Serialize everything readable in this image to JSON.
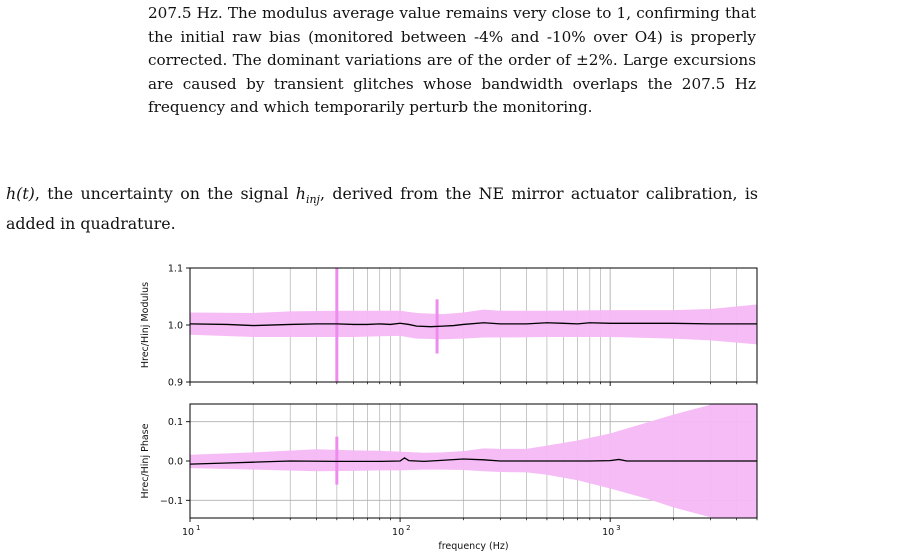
{
  "paragraph1": {
    "text": "207.5 Hz. The modulus average value remains very close to 1, confirming that the initial raw bias (monitored between -4% and -10% over O4) is properly corrected. The dominant variations are of the order of ±2%. Large excursions are caused by transient glitches whose bandwidth overlaps the 207.5 Hz frequency and which temporarily perturb the monitoring."
  },
  "paragraph2": {
    "math_ht": "h(t)",
    "text_a": ", the uncertainty on the signal ",
    "math_h": "h",
    "math_sub": "inj",
    "text_b": ", derived from the NE mirror actuator calibration, is added in quadrature."
  },
  "colors": {
    "band": "#f5b8f5",
    "line": "#000000",
    "grid": "#b0b0b0"
  },
  "chart_data": [
    {
      "type": "line",
      "title": "",
      "xlabel": "",
      "ylabel": "Hrec/Hinj Modulus",
      "xscale": "log",
      "xlim": [
        10,
        5000
      ],
      "ylim": [
        0.9,
        1.1
      ],
      "yticks": [
        "0.9",
        "1.0",
        "1.1"
      ],
      "grid": true,
      "series": [
        {
          "kind": "median",
          "x": [
            10,
            15,
            20,
            30,
            40,
            50,
            60,
            70,
            80,
            90,
            100,
            110,
            120,
            140,
            160,
            180,
            200,
            250,
            300,
            400,
            500,
            600,
            700,
            800,
            1000,
            1500,
            2000,
            3000,
            5000
          ],
          "y": [
            1.002,
            1.001,
            0.999,
            1.001,
            1.002,
            1.002,
            1.001,
            1.001,
            1.002,
            1.001,
            1.003,
            1.001,
            0.998,
            0.997,
            0.998,
            0.999,
            1.001,
            1.004,
            1.002,
            1.002,
            1.004,
            1.003,
            1.002,
            1.004,
            1.003,
            1.003,
            1.003,
            1.002,
            1.002
          ]
        },
        {
          "kind": "band_upper",
          "x": [
            10,
            20,
            30,
            50,
            60,
            100,
            120,
            160,
            200,
            250,
            300,
            500,
            1000,
            2000,
            3000,
            5000
          ],
          "y": [
            1.022,
            1.021,
            1.024,
            1.025,
            1.025,
            1.025,
            1.021,
            1.019,
            1.022,
            1.027,
            1.025,
            1.025,
            1.026,
            1.026,
            1.028,
            1.036
          ]
        },
        {
          "kind": "band_lower",
          "x": [
            10,
            20,
            30,
            50,
            60,
            100,
            120,
            160,
            200,
            250,
            300,
            500,
            1000,
            2000,
            3000,
            5000
          ],
          "y": [
            0.983,
            0.979,
            0.979,
            0.979,
            0.979,
            0.981,
            0.976,
            0.975,
            0.976,
            0.978,
            0.978,
            0.979,
            0.979,
            0.976,
            0.973,
            0.966
          ]
        },
        {
          "kind": "spike",
          "x": [
            50,
            50
          ],
          "y": [
            0.9,
            1.1
          ]
        },
        {
          "kind": "spike",
          "x": [
            150,
            150
          ],
          "y": [
            0.95,
            1.045
          ]
        }
      ]
    },
    {
      "type": "line",
      "title": "",
      "xlabel": "frequency (Hz)",
      "ylabel": "Hrec/Hinj Phase",
      "xscale": "log",
      "xlim": [
        10,
        5000
      ],
      "ylim": [
        -0.145,
        0.145
      ],
      "yticks": [
        "−0.1",
        "0.0",
        "0.1"
      ],
      "xticks": [
        "10",
        "10",
        "10"
      ],
      "xtick_exponents": [
        "1",
        "2",
        "3"
      ],
      "grid": true,
      "series": [
        {
          "kind": "median",
          "x": [
            10,
            15,
            20,
            30,
            50,
            80,
            100,
            105,
            110,
            130,
            150,
            200,
            250,
            300,
            500,
            800,
            1000,
            1100,
            1200,
            2000,
            5000
          ],
          "y": [
            -0.008,
            -0.005,
            -0.003,
            0.0,
            -0.001,
            -0.001,
            0.0,
            0.008,
            0.001,
            -0.001,
            0.001,
            0.005,
            0.003,
            0.0,
            0.0,
            0.0,
            0.001,
            0.004,
            0.0,
            0.0,
            0.0
          ]
        },
        {
          "kind": "band_upper",
          "x": [
            10,
            20,
            40,
            60,
            80,
            100,
            130,
            160,
            200,
            250,
            300,
            400,
            500,
            700,
            1000,
            1500,
            2000,
            3000,
            5000
          ],
          "y": [
            0.016,
            0.022,
            0.03,
            0.027,
            0.026,
            0.024,
            0.021,
            0.022,
            0.025,
            0.032,
            0.031,
            0.031,
            0.039,
            0.052,
            0.07,
            0.098,
            0.118,
            0.143,
            0.16
          ]
        },
        {
          "kind": "band_lower",
          "x": [
            10,
            20,
            40,
            60,
            80,
            100,
            130,
            160,
            200,
            250,
            300,
            400,
            500,
            700,
            1000,
            1500,
            2000,
            3000,
            5000
          ],
          "y": [
            -0.018,
            -0.022,
            -0.026,
            -0.025,
            -0.024,
            -0.024,
            -0.022,
            -0.022,
            -0.023,
            -0.026,
            -0.028,
            -0.029,
            -0.035,
            -0.049,
            -0.07,
            -0.096,
            -0.118,
            -0.143,
            -0.16
          ]
        },
        {
          "kind": "spike",
          "x": [
            50,
            50
          ],
          "y": [
            -0.06,
            0.062
          ]
        }
      ]
    }
  ]
}
